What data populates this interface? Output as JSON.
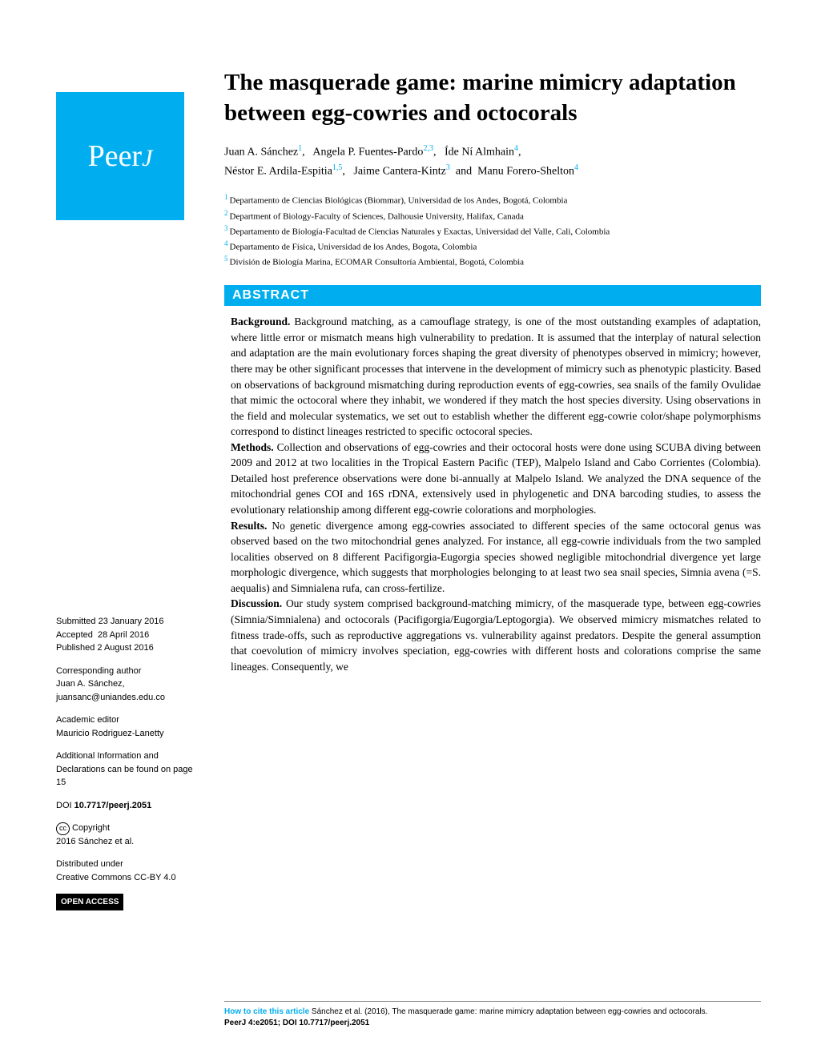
{
  "brand": {
    "logo_main": "Peer",
    "logo_suffix": "J",
    "accent_color": "#00aeef"
  },
  "paper": {
    "title": "The masquerade game: marine mimicry adaptation between egg-cowries and octocorals",
    "authors_line1": "Juan A. Sánchez",
    "aff1": "1",
    "authors_2": "Angela P. Fuentes-Pardo",
    "aff2": "2,3",
    "authors_3": "Íde Ní Almhain",
    "aff3": "4",
    "authors_line2_1": "Néstor E. Ardila-Espitia",
    "aff4": "1,5",
    "authors_line2_2": "Jaime Cantera-Kintz",
    "aff5": "3",
    "authors_line2_3": "Manu Forero-Shelton",
    "aff6": "4"
  },
  "affiliations": {
    "a1": "Departamento de Ciencias Biológicas (Biommar), Universidad de los Andes, Bogotá, Colombia",
    "a2": "Department of Biology-Faculty of Sciences, Dalhousie University, Halifax, Canada",
    "a3": "Departamento de Biología-Facultad de Ciencias Naturales y Exactas, Universidad del Valle, Cali, Colombia",
    "a4": "Departamento de Física, Universidad de los Andes, Bogota, Colombia",
    "a5": "División de Biología Marina, ECOMAR Consultoría Ambiental, Bogotá, Colombia"
  },
  "abstract": {
    "header": "ABSTRACT",
    "background_label": "Background.",
    "background": " Background matching, as a camouflage strategy, is one of the most outstanding examples of adaptation, where little error or mismatch means high vulnerability to predation. It is assumed that the interplay of natural selection and adaptation are the main evolutionary forces shaping the great diversity of phenotypes observed in mimicry; however, there may be other significant processes that intervene in the development of mimicry such as phenotypic plasticity. Based on observations of background mismatching during reproduction events of egg-cowries, sea snails of the family Ovulidae that mimic the octocoral where they inhabit, we wondered if they match the host species diversity. Using observations in the field and molecular systematics, we set out to establish whether the different egg-cowrie color/shape polymorphisms correspond to distinct lineages restricted to specific octocoral species.",
    "methods_label": "Methods.",
    "methods": " Collection and observations of egg-cowries and their octocoral hosts were done using SCUBA diving between 2009 and 2012 at two localities in the Tropical Eastern Pacific (TEP), Malpelo Island and Cabo Corrientes (Colombia). Detailed host preference observations were done bi-annually at Malpelo Island. We analyzed the DNA sequence of the mitochondrial genes COI and 16S rDNA, extensively used in phylogenetic and DNA barcoding studies, to assess the evolutionary relationship among different egg-cowrie colorations and morphologies.",
    "results_label": "Results.",
    "results": " No genetic divergence among egg-cowries associated to different species of the same octocoral genus was observed based on the two mitochondrial genes analyzed. For instance, all egg-cowrie individuals from the two sampled localities observed on 8 different Pacifigorgia-Eugorgia species showed negligible mitochondrial divergence yet large morphologic divergence, which suggests that morphologies belonging to at least two sea snail species, Simnia avena (=S. aequalis) and Simnialena rufa, can cross-fertilize.",
    "discussion_label": "Discussion.",
    "discussion": " Our study system comprised background-matching mimicry, of the masquerade type, between egg-cowries (Simnia/Simnialena) and octocorals (Pacifigorgia/Eugorgia/Leptogorgia). We observed mimicry mismatches related to fitness trade-offs, such as reproductive aggregations vs. vulnerability against predators. Despite the general assumption that coevolution of mimicry involves speciation, egg-cowries with different hosts and colorations comprise the same lineages. Consequently, we"
  },
  "sidebar": {
    "submitted_label": "Submitted",
    "submitted": "23 January 2016",
    "accepted_label": "Accepted",
    "accepted": "28 April 2016",
    "published_label": "Published",
    "published": "2 August 2016",
    "corr_label": "Corresponding author",
    "corr_name": "Juan A. Sánchez,",
    "corr_email": "juansanc@uniandes.edu.co",
    "editor_label": "Academic editor",
    "editor": "Mauricio Rodriguez-Lanetty",
    "addl_info": "Additional Information and Declarations can be found on page 15",
    "doi_label": "DOI",
    "doi": "10.7717/peerj.2051",
    "copyright_label": "Copyright",
    "copyright": "2016 Sánchez et al.",
    "dist_label": "Distributed under",
    "dist": "Creative Commons CC-BY 4.0",
    "open_access": "OPEN ACCESS"
  },
  "citation": {
    "lead": "How to cite this article",
    "text": " Sánchez et al. (2016), The masquerade game: marine mimicry adaptation between egg-cowries and octocorals. ",
    "journal": "PeerJ 4:e2051; DOI 10.7717/peerj.2051"
  }
}
